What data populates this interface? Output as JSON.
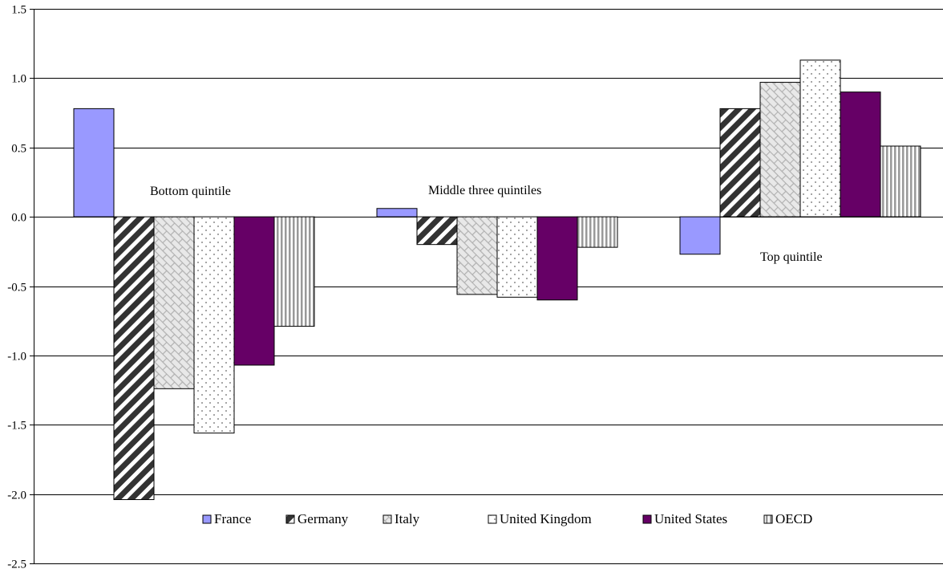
{
  "chart_data": {
    "type": "bar",
    "title": "",
    "xlabel": "",
    "ylabel": "",
    "ylim": [
      -2.5,
      1.5
    ],
    "yticks": [
      1.5,
      1.0,
      0.5,
      0.0,
      -0.5,
      -1.0,
      -1.5,
      -2.0,
      -2.5
    ],
    "ytick_labels": [
      "1.5",
      "1.0",
      "0.5",
      "0.0",
      "-0.5",
      "-1.0",
      "-1.5",
      "-2.0",
      "-2.5"
    ],
    "grid": true,
    "legend_position": "bottom-center",
    "categories": [
      "Bottom quintile",
      "Middle three quintiles",
      "Top quintile"
    ],
    "series": [
      {
        "name": "France",
        "values": [
          0.78,
          0.06,
          -0.27
        ],
        "pattern": "solid",
        "color": "#9999ff"
      },
      {
        "name": "Germany",
        "values": [
          -2.04,
          -0.2,
          0.78
        ],
        "pattern": "diagonal-stripes",
        "color": "#333333"
      },
      {
        "name": "Italy",
        "values": [
          -1.24,
          -0.56,
          0.97
        ],
        "pattern": "brick",
        "color": "#bbbbbb"
      },
      {
        "name": "United Kingdom",
        "values": [
          -1.56,
          -0.58,
          1.13
        ],
        "pattern": "dots",
        "color": "#888888"
      },
      {
        "name": "United States",
        "values": [
          -1.07,
          -0.6,
          0.9
        ],
        "pattern": "solid",
        "color": "#660066"
      },
      {
        "name": "OECD",
        "values": [
          -0.79,
          -0.22,
          0.51
        ],
        "pattern": "vertical-stripes",
        "color": "#999999"
      }
    ]
  }
}
